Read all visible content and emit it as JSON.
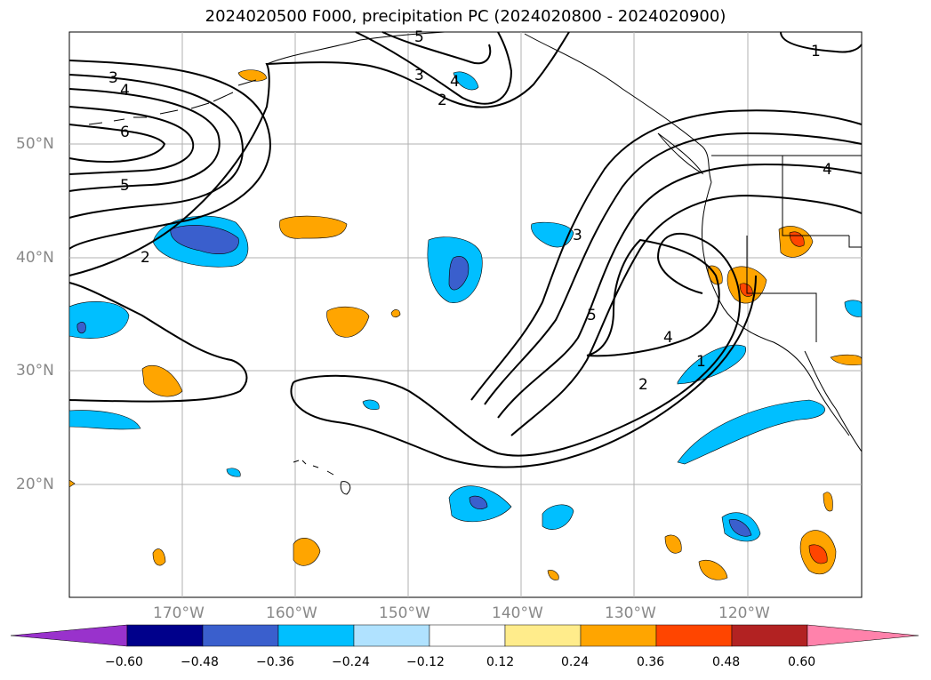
{
  "title": "2024020500 F000, precipitation PC (2024020800 - 2024020900)",
  "map": {
    "lat_labels": [
      "50°N",
      "40°N",
      "30°N",
      "20°N"
    ],
    "lon_labels": [
      "170°W",
      "160°W",
      "150°W",
      "140°W",
      "130°W",
      "120°W"
    ],
    "contour_labels": [
      "1",
      "2",
      "3",
      "4",
      "5",
      "6"
    ],
    "contour_color": "#000000",
    "grid_color": "#b0b0b0",
    "gridlines": true
  },
  "colorbar": {
    "tick_labels": [
      "−0.60",
      "−0.48",
      "−0.36",
      "−0.24",
      "−0.12",
      "0.12",
      "0.24",
      "0.36",
      "0.48",
      "0.60"
    ],
    "colors": [
      "#9932cc",
      "#00008b",
      "#3a5fcd",
      "#00bfff",
      "#b0e2ff",
      "#ffffff",
      "#ffec8b",
      "#ffa500",
      "#ff4500",
      "#b22222",
      "#ff82ab"
    ]
  }
}
